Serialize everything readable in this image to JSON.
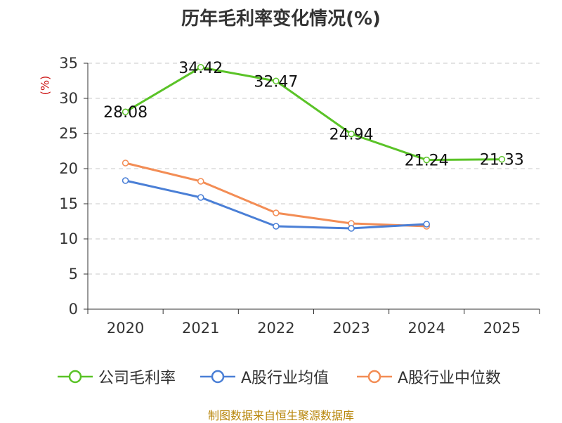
{
  "chart_data": {
    "type": "line",
    "title": "历年毛利率变化情况(%)",
    "ylabel": "(%)",
    "xlabel": "",
    "categories": [
      "2020",
      "2021",
      "2022",
      "2023",
      "2024",
      "2025"
    ],
    "ylim": [
      0,
      35
    ],
    "yticks": [
      0,
      5,
      10,
      15,
      20,
      25,
      30,
      35
    ],
    "grid": true,
    "legend_position": "bottom",
    "series": [
      {
        "name": "公司毛利率",
        "color": "#5ac327",
        "labels": true,
        "values": [
          28.08,
          34.42,
          32.47,
          24.94,
          21.24,
          21.33
        ],
        "value_labels": [
          "28.08",
          "34.42",
          "32.47",
          "24.94",
          "21.24",
          "21.33"
        ]
      },
      {
        "name": "A股行业均值",
        "color": "#4a7fd6",
        "labels": false,
        "values": [
          18.3,
          15.9,
          11.8,
          11.5,
          12.1,
          null
        ]
      },
      {
        "name": "A股行业中位数",
        "color": "#f38d55",
        "labels": false,
        "values": [
          20.8,
          18.2,
          13.7,
          12.2,
          11.8,
          null
        ]
      }
    ]
  },
  "footer": "制图数据来自恒生聚源数据库"
}
